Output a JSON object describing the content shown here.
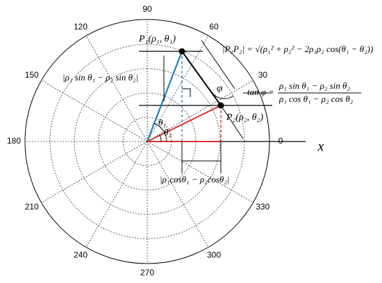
{
  "diagram": {
    "angle_labels": [
      0,
      30,
      60,
      90,
      120,
      150,
      180,
      210,
      240,
      270,
      300,
      330
    ],
    "axis_label": "x",
    "p1_label": "P₁(ρ₁, θ₁)",
    "p2_label": "P₂(ρ₂, θ₂)",
    "theta1": "θ₁",
    "theta2": "θ₂",
    "phi": "φ",
    "distance_formula": "|P₁P₂| = √(ρ₁² + ρ₂² − 2ρ₁ρ₂ cos(θ₁ − θ₂))",
    "vertical_difference": "|ρ₁ sin θ₁ − ρ₂ sin θ₂|",
    "horizontal_difference": "|ρ₁cosθ₁ − ρ₂cosθ₂|",
    "tan_label": "tan φ =",
    "tan_numerator": "ρ₁ sin θ₁ − ρ₂ sin θ₂",
    "tan_denominator": "ρ₁ cos θ₁ − ρ₂ cos θ₂"
  }
}
